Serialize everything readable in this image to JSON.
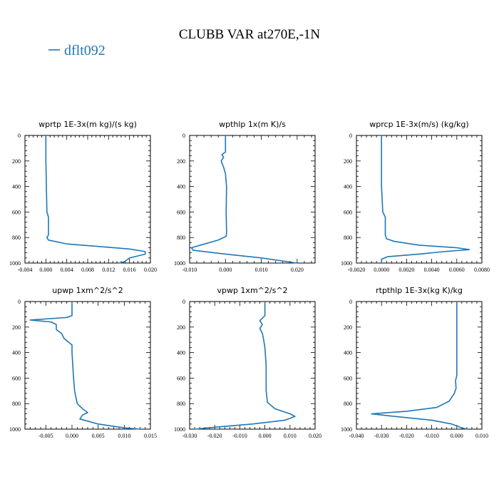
{
  "figure": {
    "title": "CLUBB VAR at270E,-1N",
    "legend": [
      {
        "name": "dflt092",
        "color": "#1f77b4"
      }
    ]
  },
  "chart_data": [
    {
      "type": "line",
      "title": "wprtp   1E-3x(m kg)/(s kg)",
      "xlim": [
        -0.004,
        0.02
      ],
      "ylim": [
        0,
        1000
      ],
      "y_inverted": true,
      "xticks": [
        -0.004,
        0.0,
        0.004,
        0.008,
        0.012,
        0.016,
        0.02
      ],
      "xtick_labels": [
        "-0.004",
        "0.000",
        "0.004",
        "0.008",
        "0.012",
        "0.016",
        "0.020"
      ],
      "yticks": [
        0,
        200,
        400,
        600,
        800,
        1000
      ],
      "ytick_labels": [
        "0",
        "200",
        "400",
        "600",
        "800",
        "1000"
      ],
      "series": [
        {
          "name": "dflt092",
          "color": "#1f77b4",
          "points": [
            [
              0.0,
              0
            ],
            [
              0.0,
              200
            ],
            [
              0.0001,
              400
            ],
            [
              0.0002,
              600
            ],
            [
              0.0005,
              640
            ],
            [
              0.0005,
              780
            ],
            [
              0.0002,
              800
            ],
            [
              0.0005,
              820
            ],
            [
              0.004,
              850
            ],
            [
              0.01,
              870
            ],
            [
              0.016,
              890
            ],
            [
              0.019,
              910
            ],
            [
              0.019,
              930
            ],
            [
              0.016,
              960
            ],
            [
              0.015,
              990
            ],
            [
              0.014,
              1000
            ]
          ]
        }
      ]
    },
    {
      "type": "line",
      "title": "wpthlp   1x(m K)/s",
      "xlim": [
        -0.01,
        0.025
      ],
      "ylim": [
        0,
        1000
      ],
      "y_inverted": true,
      "xticks": [
        -0.01,
        0.0,
        0.01,
        0.02
      ],
      "xtick_labels": [
        "-0.010",
        "0.000",
        "0.010",
        "0.020"
      ],
      "yticks": [
        0,
        200,
        400,
        600,
        800,
        1000
      ],
      "ytick_labels": [
        "0",
        "200",
        "400",
        "600",
        "800",
        "1000"
      ],
      "series": [
        {
          "name": "dflt092",
          "color": "#1f77b4",
          "points": [
            [
              0.0,
              0
            ],
            [
              0.0,
              130
            ],
            [
              -0.001,
              150
            ],
            [
              -0.0005,
              170
            ],
            [
              -0.0012,
              200
            ],
            [
              -0.0005,
              250
            ],
            [
              0.0,
              300
            ],
            [
              0.0003,
              400
            ],
            [
              0.0002,
              600
            ],
            [
              0.0003,
              760
            ],
            [
              0.0002,
              790
            ],
            [
              -0.002,
              820
            ],
            [
              -0.007,
              860
            ],
            [
              -0.0095,
              880
            ],
            [
              -0.009,
              900
            ],
            [
              0.0,
              930
            ],
            [
              0.01,
              960
            ],
            [
              0.02,
              1000
            ]
          ]
        }
      ]
    },
    {
      "type": "line",
      "title": "wprcp   1E-3x(m/s) (kg/kg)",
      "xlim": [
        -0.002,
        0.008
      ],
      "ylim": [
        0,
        1000
      ],
      "y_inverted": true,
      "xticks": [
        -0.002,
        0.0,
        0.002,
        0.004,
        0.006,
        0.008
      ],
      "xtick_labels": [
        "-0.0020",
        "0.0000",
        "0.0020",
        "0.0040",
        "0.0060",
        "0.0080"
      ],
      "yticks": [
        0,
        200,
        400,
        600,
        800,
        1000
      ],
      "ytick_labels": [
        "0",
        "200",
        "400",
        "600",
        "800",
        "1000"
      ],
      "series": [
        {
          "name": "dflt092",
          "color": "#1f77b4",
          "points": [
            [
              0.0,
              0
            ],
            [
              0.0,
              400
            ],
            [
              0.0001,
              600
            ],
            [
              0.0003,
              640
            ],
            [
              0.0003,
              780
            ],
            [
              0.0004,
              810
            ],
            [
              0.001,
              830
            ],
            [
              0.003,
              860
            ],
            [
              0.006,
              880
            ],
            [
              0.007,
              895
            ],
            [
              0.005,
              910
            ],
            [
              0.003,
              930
            ],
            [
              0.0005,
              950
            ],
            [
              0.0,
              970
            ],
            [
              0.0,
              1000
            ]
          ]
        }
      ]
    },
    {
      "type": "line",
      "title": "upwp   1xm^2/s^2",
      "xlim": [
        -0.009,
        0.015
      ],
      "ylim": [
        0,
        1000
      ],
      "y_inverted": true,
      "xticks": [
        -0.005,
        0.0,
        0.005,
        0.01,
        0.015
      ],
      "xtick_labels": [
        "-0.005",
        "0.000",
        "0.005",
        "0.010",
        "0.015"
      ],
      "yticks": [
        0,
        200,
        400,
        600,
        800,
        1000
      ],
      "ytick_labels": [
        "0",
        "200",
        "400",
        "600",
        "800",
        "1000"
      ],
      "series": [
        {
          "name": "dflt092",
          "color": "#1f77b4",
          "points": [
            [
              0.0,
              0
            ],
            [
              0.0,
              110
            ],
            [
              -0.001,
              125
            ],
            [
              -0.008,
              145
            ],
            [
              -0.004,
              160
            ],
            [
              -0.003,
              180
            ],
            [
              -0.003,
              220
            ],
            [
              -0.002,
              250
            ],
            [
              -0.0015,
              290
            ],
            [
              0.0,
              340
            ],
            [
              0.0,
              400
            ],
            [
              0.0003,
              600
            ],
            [
              0.0005,
              700
            ],
            [
              0.001,
              800
            ],
            [
              0.002,
              840
            ],
            [
              0.003,
              870
            ],
            [
              0.002,
              890
            ],
            [
              0.0015,
              920
            ],
            [
              0.005,
              960
            ],
            [
              0.01,
              990
            ],
            [
              0.013,
              1000
            ]
          ]
        }
      ]
    },
    {
      "type": "line",
      "title": "vpwp   1xm^2/s^2",
      "xlim": [
        -0.03,
        0.02
      ],
      "ylim": [
        0,
        1000
      ],
      "y_inverted": true,
      "xticks": [
        -0.03,
        -0.02,
        -0.01,
        0.0,
        0.01,
        0.02
      ],
      "xtick_labels": [
        "-0.030",
        "-0.020",
        "-0.010",
        "0.000",
        "0.010",
        "0.020"
      ],
      "yticks": [
        0,
        200,
        400,
        600,
        800,
        1000
      ],
      "ytick_labels": [
        "0",
        "200",
        "400",
        "600",
        "800",
        "1000"
      ],
      "series": [
        {
          "name": "dflt092",
          "color": "#1f77b4",
          "points": [
            [
              0.0,
              0
            ],
            [
              0.0,
              110
            ],
            [
              -0.002,
              150
            ],
            [
              -0.001,
              180
            ],
            [
              -0.002,
              210
            ],
            [
              -0.001,
              250
            ],
            [
              -0.0005,
              300
            ],
            [
              0.0,
              360
            ],
            [
              0.0005,
              500
            ],
            [
              0.0005,
              700
            ],
            [
              0.001,
              790
            ],
            [
              0.004,
              840
            ],
            [
              0.01,
              880
            ],
            [
              0.012,
              900
            ],
            [
              0.008,
              930
            ],
            [
              -0.005,
              960
            ],
            [
              -0.02,
              985
            ],
            [
              -0.028,
              1000
            ]
          ]
        }
      ]
    },
    {
      "type": "line",
      "title": "rtpthlp   1E-3x(kg K)/kg",
      "xlim": [
        -0.04,
        0.01
      ],
      "ylim": [
        0,
        1000
      ],
      "y_inverted": true,
      "xticks": [
        -0.04,
        -0.03,
        -0.02,
        -0.01,
        0.0,
        0.01
      ],
      "xtick_labels": [
        "-0.040",
        "-0.030",
        "-0.020",
        "-0.010",
        "0.000",
        "0.010"
      ],
      "yticks": [
        0,
        200,
        400,
        600,
        800,
        1000
      ],
      "ytick_labels": [
        "0",
        "200",
        "400",
        "600",
        "800",
        "1000"
      ],
      "series": [
        {
          "name": "dflt092",
          "color": "#1f77b4",
          "points": [
            [
              0.0,
              0
            ],
            [
              0.0,
              500
            ],
            [
              0.0,
              580
            ],
            [
              -0.0005,
              620
            ],
            [
              -0.0003,
              680
            ],
            [
              -0.001,
              720
            ],
            [
              -0.003,
              780
            ],
            [
              -0.008,
              830
            ],
            [
              -0.02,
              860
            ],
            [
              -0.034,
              880
            ],
            [
              -0.025,
              900
            ],
            [
              -0.01,
              930
            ],
            [
              -0.002,
              960
            ],
            [
              0.002,
              990
            ],
            [
              0.004,
              1000
            ]
          ]
        }
      ]
    }
  ]
}
